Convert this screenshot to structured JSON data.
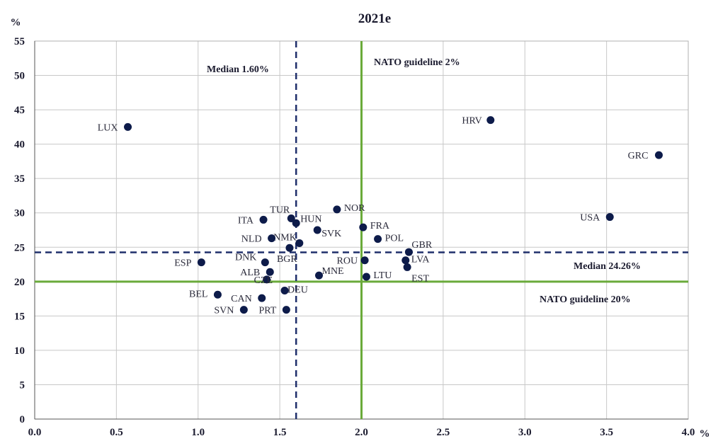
{
  "chart_data": {
    "type": "scatter",
    "title": "2021e",
    "ylabel": "%",
    "xlabel": "%",
    "xlim": [
      0,
      4
    ],
    "ylim": [
      0,
      55
    ],
    "xticks": [
      "0.0",
      "0.5",
      "1.0",
      "1.5",
      "2.0",
      "2.5",
      "3.0",
      "3.5",
      "4.0"
    ],
    "yticks": [
      "0",
      "5",
      "10",
      "15",
      "20",
      "25",
      "30",
      "35",
      "40",
      "45",
      "50",
      "55"
    ],
    "grid": true,
    "colors": {
      "point": "#0d1b4a",
      "nato": "#6aaa3a",
      "median": "#1f2f6b",
      "grid": "#c8c8c8"
    },
    "points": [
      {
        "label": "LUX",
        "x": 0.57,
        "y": 42.5
      },
      {
        "label": "HRV",
        "x": 2.79,
        "y": 43.5
      },
      {
        "label": "GRC",
        "x": 3.82,
        "y": 38.4
      },
      {
        "label": "USA",
        "x": 3.52,
        "y": 29.4
      },
      {
        "label": "NOR",
        "x": 1.85,
        "y": 30.5
      },
      {
        "label": "TUR",
        "x": 1.57,
        "y": 29.2
      },
      {
        "label": "HUN",
        "x": 1.6,
        "y": 28.5
      },
      {
        "label": "ITA",
        "x": 1.4,
        "y": 29.0
      },
      {
        "label": "FRA",
        "x": 2.01,
        "y": 27.9
      },
      {
        "label": "SVK",
        "x": 1.73,
        "y": 27.5
      },
      {
        "label": "NMK",
        "x": 1.62,
        "y": 25.6
      },
      {
        "label": "NLD",
        "x": 1.45,
        "y": 26.3
      },
      {
        "label": "POL",
        "x": 2.1,
        "y": 26.2
      },
      {
        "label": "GBR",
        "x": 2.29,
        "y": 24.3
      },
      {
        "label": "BGR",
        "x": 1.56,
        "y": 24.9
      },
      {
        "label": "DNK",
        "x": 1.41,
        "y": 22.8
      },
      {
        "label": "ESP",
        "x": 1.02,
        "y": 22.8
      },
      {
        "label": "ROU",
        "x": 2.02,
        "y": 23.1
      },
      {
        "label": "LVA",
        "x": 2.27,
        "y": 23.1
      },
      {
        "label": "EST",
        "x": 2.28,
        "y": 22.1
      },
      {
        "label": "ALB",
        "x": 1.44,
        "y": 21.4
      },
      {
        "label": "MNE",
        "x": 1.74,
        "y": 20.9
      },
      {
        "label": "LTU",
        "x": 2.03,
        "y": 20.7
      },
      {
        "label": "CZE",
        "x": 1.42,
        "y": 20.3
      },
      {
        "label": "DEU",
        "x": 1.53,
        "y": 18.7
      },
      {
        "label": "BEL",
        "x": 1.12,
        "y": 18.1
      },
      {
        "label": "CAN",
        "x": 1.39,
        "y": 17.6
      },
      {
        "label": "SVN",
        "x": 1.28,
        "y": 15.9
      },
      {
        "label": "PRT",
        "x": 1.54,
        "y": 15.9
      }
    ],
    "reference_lines": [
      {
        "axis": "x",
        "value": 2.0,
        "style": "solid",
        "color": "#6aaa3a",
        "label": "NATO guideline 2%"
      },
      {
        "axis": "y",
        "value": 20.0,
        "style": "solid",
        "color": "#6aaa3a",
        "label": "NATO guideline 20%"
      },
      {
        "axis": "x",
        "value": 1.6,
        "style": "dashed",
        "color": "#1f2f6b",
        "label": "Median 1.60%"
      },
      {
        "axis": "y",
        "value": 24.26,
        "style": "dashed",
        "color": "#1f2f6b",
        "label": "Median 24.26%"
      }
    ]
  }
}
